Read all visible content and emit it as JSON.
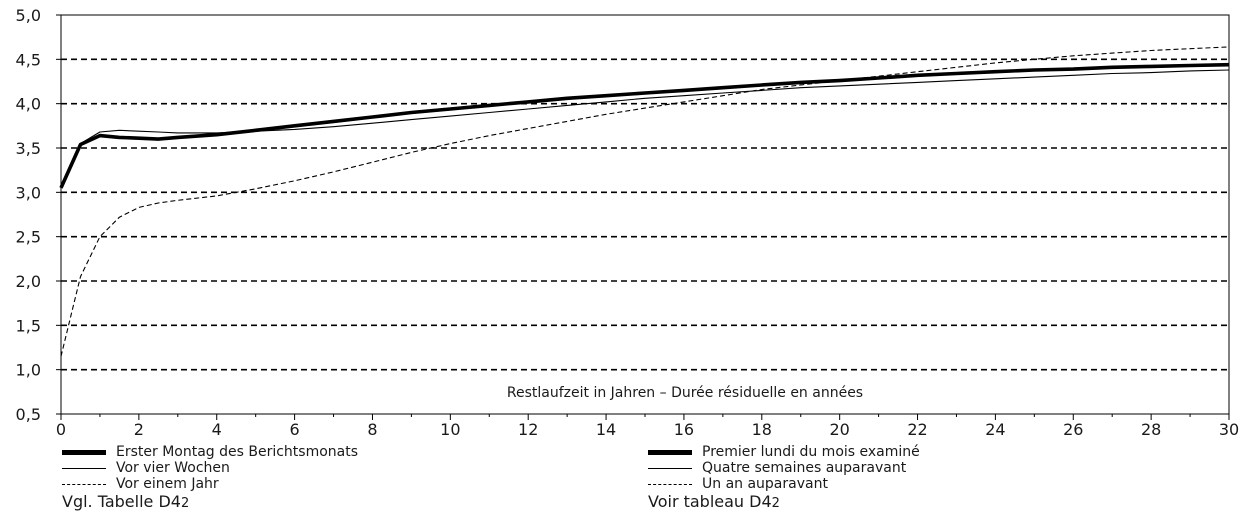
{
  "chart_data": {
    "type": "line",
    "xlabel": "Restlaufzeit in Jahren – Durée résiduelle en années",
    "ylabel": "",
    "xlim": [
      0,
      30
    ],
    "ylim": [
      0.5,
      5.0
    ],
    "x_ticks": [
      0,
      2,
      4,
      6,
      8,
      10,
      12,
      14,
      16,
      18,
      20,
      22,
      24,
      26,
      28,
      30
    ],
    "y_ticks": [
      "0,5",
      "1,0",
      "1,5",
      "2,0",
      "2,5",
      "3,0",
      "3,5",
      "4,0",
      "4,5",
      "5,0"
    ],
    "gridlines_y": [
      1.0,
      1.5,
      2.0,
      2.5,
      3.0,
      3.5,
      4.0,
      4.5
    ],
    "series": [
      {
        "name": "Erster Montag des Berichtsmonats",
        "style": "thick",
        "x": [
          0,
          0.5,
          1,
          1.5,
          2,
          2.5,
          3,
          4,
          5,
          6,
          7,
          8,
          9,
          10,
          11,
          12,
          13,
          14,
          15,
          16,
          17,
          18,
          19,
          20,
          21,
          22,
          23,
          24,
          25,
          26,
          27,
          28,
          29,
          30
        ],
        "y": [
          3.05,
          3.54,
          3.64,
          3.62,
          3.61,
          3.6,
          3.62,
          3.65,
          3.7,
          3.75,
          3.8,
          3.85,
          3.9,
          3.94,
          3.98,
          4.02,
          4.06,
          4.09,
          4.12,
          4.15,
          4.18,
          4.21,
          4.24,
          4.26,
          4.29,
          4.32,
          4.34,
          4.36,
          4.38,
          4.39,
          4.41,
          4.42,
          4.43,
          4.44
        ]
      },
      {
        "name": "Vor vier Wochen",
        "style": "thin",
        "x": [
          0,
          0.5,
          1,
          1.5,
          2,
          2.5,
          3,
          4,
          5,
          6,
          7,
          8,
          9,
          10,
          11,
          12,
          13,
          14,
          15,
          16,
          17,
          18,
          19,
          20,
          21,
          22,
          23,
          24,
          25,
          26,
          27,
          28,
          29,
          30
        ],
        "y": [
          3.05,
          3.55,
          3.68,
          3.7,
          3.69,
          3.68,
          3.67,
          3.67,
          3.69,
          3.71,
          3.74,
          3.78,
          3.82,
          3.86,
          3.9,
          3.94,
          3.98,
          4.02,
          4.06,
          4.09,
          4.12,
          4.15,
          4.18,
          4.2,
          4.22,
          4.24,
          4.26,
          4.28,
          4.3,
          4.32,
          4.34,
          4.35,
          4.37,
          4.38
        ]
      },
      {
        "name": "Vor einem Jahr",
        "style": "dashed",
        "x": [
          0,
          0.25,
          0.5,
          1,
          1.5,
          2,
          2.5,
          3,
          4,
          5,
          6,
          7,
          8,
          9,
          10,
          11,
          12,
          13,
          14,
          15,
          16,
          17,
          18,
          19,
          20,
          21,
          22,
          23,
          24,
          25,
          26,
          27,
          28,
          29,
          30
        ],
        "y": [
          1.15,
          1.6,
          2.05,
          2.5,
          2.72,
          2.83,
          2.88,
          2.91,
          2.96,
          3.04,
          3.13,
          3.23,
          3.34,
          3.45,
          3.55,
          3.64,
          3.72,
          3.8,
          3.88,
          3.95,
          4.02,
          4.09,
          4.16,
          4.21,
          4.26,
          4.31,
          4.36,
          4.41,
          4.46,
          4.5,
          4.54,
          4.57,
          4.6,
          4.62,
          4.64
        ]
      }
    ]
  },
  "legend_left": {
    "items": [
      "Erster Montag des Berichtsmonats",
      "Vor vier Wochen",
      "Vor einem Jahr"
    ],
    "ref_prefix": "Vgl. Tabelle D4",
    "ref_suffix": "2"
  },
  "legend_right": {
    "items": [
      "Premier lundi du mois examiné",
      "Quatre semaines auparavant",
      "Un an auparavant"
    ],
    "ref_prefix": "Voir tableau D4",
    "ref_suffix": "2"
  }
}
